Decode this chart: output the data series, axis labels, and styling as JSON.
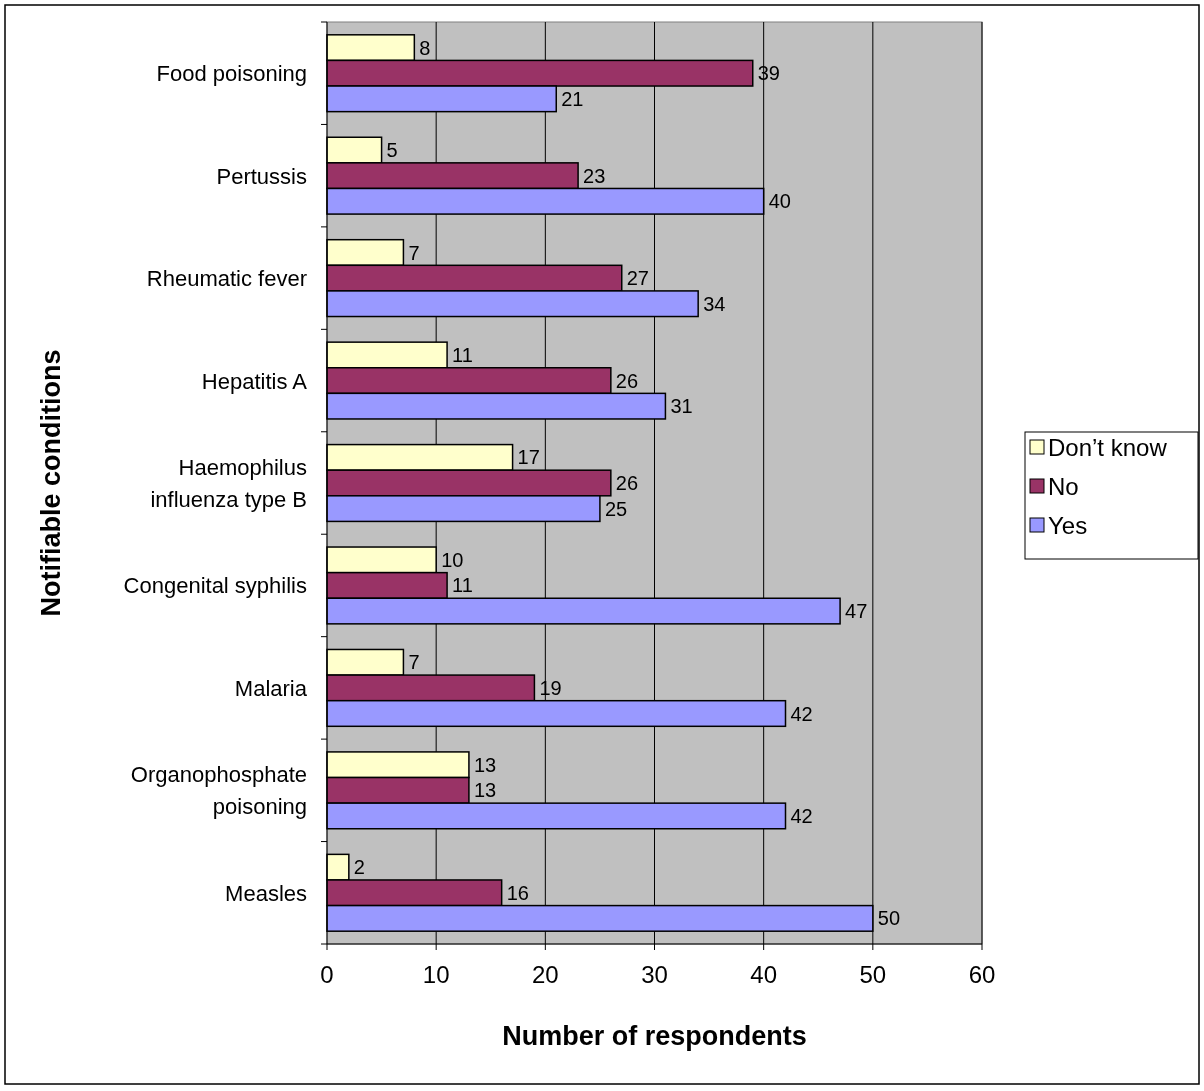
{
  "chart_data": {
    "type": "bar",
    "orientation": "horizontal",
    "xlabel": "Number of respondents",
    "ylabel": "Notifiable conditions",
    "categories": [
      "Food poisoning",
      "Pertussis",
      "Rheumatic fever",
      "Hepatitis A",
      "Haemophilus influenza type B",
      "Congenital syphilis",
      "Malaria",
      "Organophosphate poisoning",
      "Measles"
    ],
    "series": [
      {
        "name": "Don’t know",
        "color": "#ffffcc",
        "values": [
          8,
          5,
          7,
          11,
          17,
          10,
          7,
          13,
          2
        ]
      },
      {
        "name": "No",
        "color": "#993366",
        "values": [
          39,
          23,
          27,
          26,
          26,
          11,
          19,
          13,
          16
        ]
      },
      {
        "name": "Yes",
        "color": "#9999ff",
        "values": [
          21,
          40,
          34,
          31,
          25,
          47,
          42,
          42,
          50
        ]
      }
    ],
    "xlim": [
      0,
      60
    ],
    "xticks": [
      0,
      10,
      20,
      30,
      40,
      50,
      60
    ],
    "grid": "x",
    "legend": "right",
    "data_labels": true
  }
}
